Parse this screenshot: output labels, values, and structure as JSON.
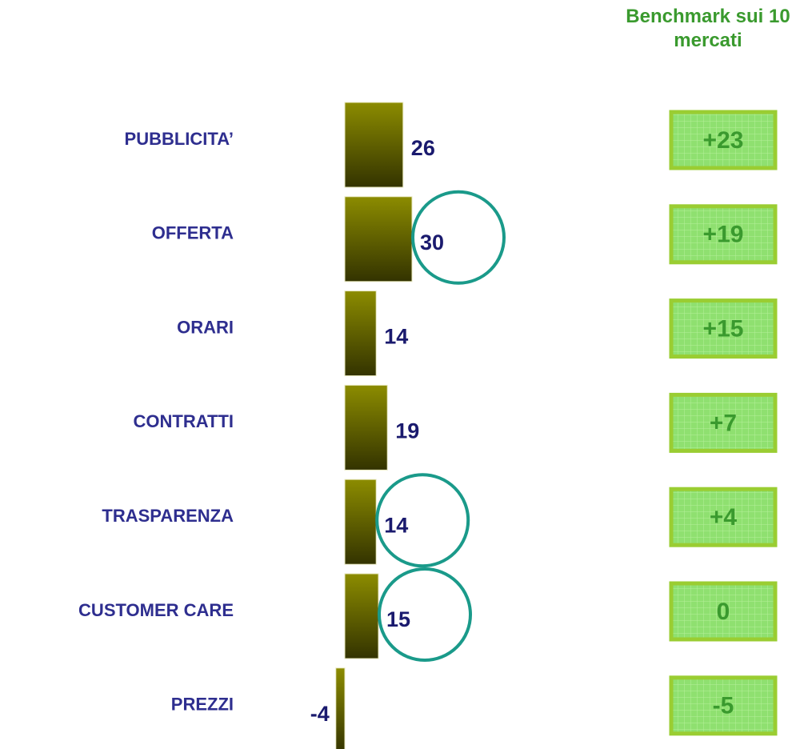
{
  "chart_data": {
    "type": "bar",
    "orientation": "horizontal",
    "categories": [
      "PUBBLICITA’",
      "OFFERTA",
      "ORARI",
      "CONTRATTI",
      "TRASPARENZA",
      "CUSTOMER CARE",
      "PREZZI"
    ],
    "values": [
      26,
      30,
      14,
      19,
      14,
      15,
      -4
    ],
    "color": "#7a7a00",
    "highlight": [
      "OFFERTA",
      "TRASPARENZA",
      "CUSTOMER CARE"
    ],
    "benchmark": {
      "title": "Benchmark sui 10 mercati",
      "values": [
        23,
        19,
        15,
        7,
        4,
        0,
        -5
      ],
      "value_labels": [
        "+23",
        "+19",
        "+15",
        "+7",
        "+4",
        "0",
        "-5"
      ]
    }
  }
}
